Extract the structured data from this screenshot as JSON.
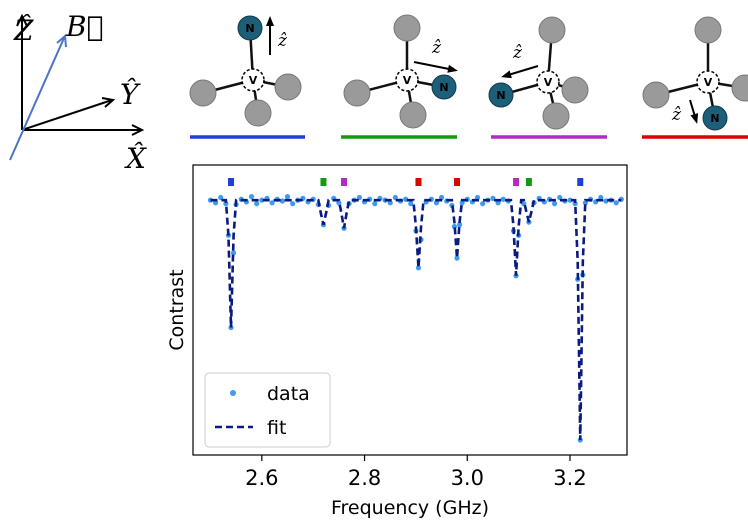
{
  "schematic": {
    "axis_labels": {
      "z": "Ẑ",
      "b": "B⃗",
      "y": "Ŷ",
      "x": "X̂"
    },
    "nitrogen": "N",
    "vacancy": "V",
    "direction": "ẑ"
  },
  "chart_data": {
    "type": "scatter",
    "xlabel": "Frequency (GHz)",
    "ylabel": "Contrast",
    "xlim": [
      2.466,
      3.311
    ],
    "ylim": [
      0.7,
      1.03
    ],
    "xticks": [
      2.6,
      2.8,
      {
        "value": 3,
        "label": "3.0"
      },
      3.2
    ],
    "legend": "lower left",
    "orientations": [
      {
        "color": "#1f3fd8",
        "frequencies": [
          2.54,
          3.22
        ]
      },
      {
        "color": "#129a12",
        "frequencies": [
          2.72,
          3.12
        ]
      },
      {
        "color": "#b02cc4",
        "frequencies": [
          2.76,
          3.095
        ]
      },
      {
        "color": "#e00000",
        "frequencies": [
          2.905,
          2.98
        ]
      }
    ],
    "series": [
      {
        "name": "data",
        "color": "#3d9cf0",
        "style": "points",
        "x": [
          2.5,
          2.51,
          2.52,
          2.53,
          2.535,
          2.54,
          2.545,
          2.55,
          2.56,
          2.57,
          2.58,
          2.59,
          2.6,
          2.61,
          2.62,
          2.63,
          2.64,
          2.65,
          2.66,
          2.67,
          2.68,
          2.69,
          2.7,
          2.71,
          2.72,
          2.73,
          2.74,
          2.75,
          2.76,
          2.77,
          2.78,
          2.79,
          2.8,
          2.81,
          2.82,
          2.83,
          2.84,
          2.85,
          2.86,
          2.87,
          2.88,
          2.89,
          2.9,
          2.905,
          2.91,
          2.92,
          2.93,
          2.94,
          2.95,
          2.96,
          2.97,
          2.975,
          2.98,
          2.985,
          2.99,
          3.0,
          3.01,
          3.02,
          3.03,
          3.04,
          3.05,
          3.06,
          3.07,
          3.08,
          3.09,
          3.095,
          3.1,
          3.11,
          3.12,
          3.13,
          3.14,
          3.15,
          3.16,
          3.17,
          3.18,
          3.19,
          3.2,
          3.21,
          3.215,
          3.22,
          3.225,
          3.23,
          3.24,
          3.25,
          3.26,
          3.27,
          3.28,
          3.29,
          3.3
        ],
        "values": [
          0.99,
          0.987,
          0.993,
          0.986,
          0.95,
          0.845,
          0.93,
          0.985,
          0.991,
          0.988,
          0.994,
          0.986,
          0.99,
          0.992,
          0.987,
          0.991,
          0.989,
          0.994,
          0.986,
          0.99,
          0.992,
          0.988,
          0.991,
          0.985,
          0.962,
          0.984,
          0.992,
          0.987,
          0.958,
          0.986,
          0.99,
          0.993,
          0.988,
          0.991,
          0.986,
          0.992,
          0.99,
          0.987,
          0.993,
          0.989,
          0.991,
          0.986,
          0.955,
          0.913,
          0.945,
          0.988,
          0.991,
          0.987,
          0.993,
          0.989,
          0.984,
          0.96,
          0.924,
          0.962,
          0.987,
          0.991,
          0.988,
          0.993,
          0.986,
          0.99,
          0.992,
          0.987,
          0.991,
          0.989,
          0.955,
          0.904,
          0.95,
          0.986,
          0.965,
          0.987,
          0.992,
          0.988,
          0.991,
          0.986,
          0.993,
          0.989,
          0.99,
          0.986,
          0.9,
          0.717,
          0.905,
          0.987,
          0.991,
          0.988,
          0.993,
          0.989,
          0.99,
          0.987,
          0.991
        ]
      },
      {
        "name": "fit",
        "color": "#0a1a80",
        "style": "dashed",
        "x": [
          2.5,
          2.53,
          2.535,
          2.54,
          2.545,
          2.55,
          2.71,
          2.715,
          2.72,
          2.725,
          2.73,
          2.75,
          2.755,
          2.76,
          2.765,
          2.77,
          2.895,
          2.9,
          2.905,
          2.91,
          2.915,
          2.97,
          2.975,
          2.98,
          2.985,
          2.99,
          3.085,
          3.09,
          3.095,
          3.1,
          3.105,
          3.11,
          3.115,
          3.12,
          3.125,
          3.13,
          3.21,
          3.215,
          3.22,
          3.225,
          3.23,
          3.3
        ],
        "values": [
          0.99,
          0.99,
          0.95,
          0.845,
          0.95,
          0.99,
          0.99,
          0.975,
          0.962,
          0.975,
          0.99,
          0.99,
          0.975,
          0.958,
          0.975,
          0.99,
          0.99,
          0.96,
          0.913,
          0.96,
          0.99,
          0.99,
          0.965,
          0.924,
          0.965,
          0.99,
          0.99,
          0.96,
          0.904,
          0.96,
          0.99,
          0.99,
          0.977,
          0.965,
          0.977,
          0.99,
          0.99,
          0.92,
          0.717,
          0.92,
          0.99,
          0.99
        ]
      }
    ]
  }
}
